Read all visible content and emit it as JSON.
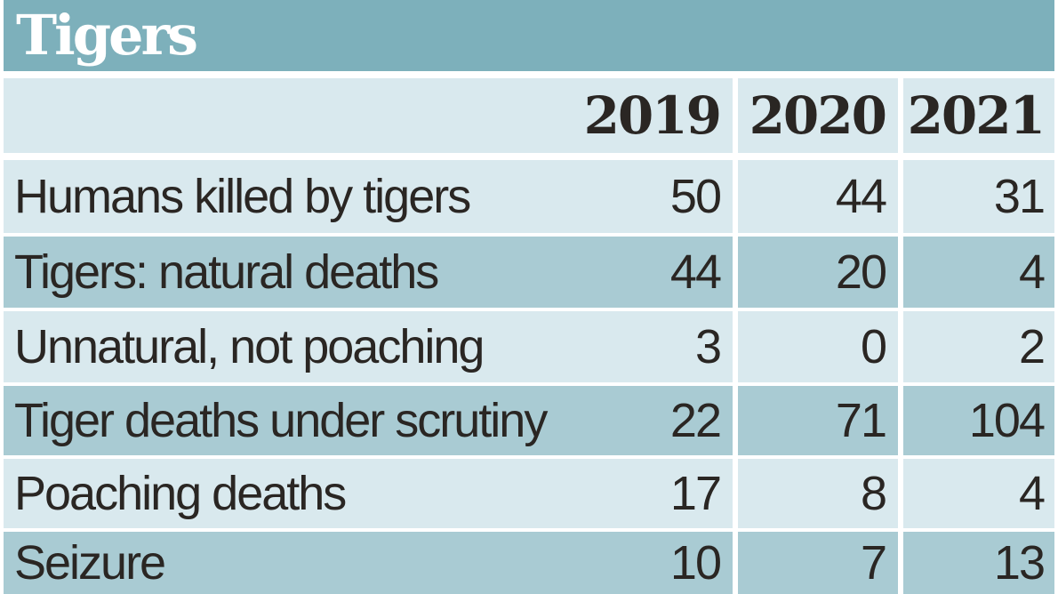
{
  "title": "Tigers",
  "chart_data": {
    "type": "table",
    "title": "Tigers",
    "columns": [
      "2019",
      "2020",
      "2021"
    ],
    "rows": [
      {
        "label": "Humans killed by tigers",
        "values": [
          "50",
          "44",
          "31"
        ]
      },
      {
        "label": "Tigers: natural deaths",
        "values": [
          "44",
          "20",
          "4"
        ]
      },
      {
        "label": "Unnatural, not poaching",
        "values": [
          "3",
          "0",
          "2"
        ]
      },
      {
        "label": "Tiger deaths under scrutiny",
        "values": [
          "22",
          "71",
          "104"
        ]
      },
      {
        "label": "Poaching deaths",
        "values": [
          "17",
          "8",
          "4"
        ]
      },
      {
        "label": "Seizure",
        "values": [
          "10",
          "7",
          "13"
        ]
      }
    ]
  },
  "colors": {
    "title_bar": "#7db0bb",
    "row_light": "#d9e9ee",
    "row_dark": "#a9cbd3",
    "text": "#2a2623"
  }
}
